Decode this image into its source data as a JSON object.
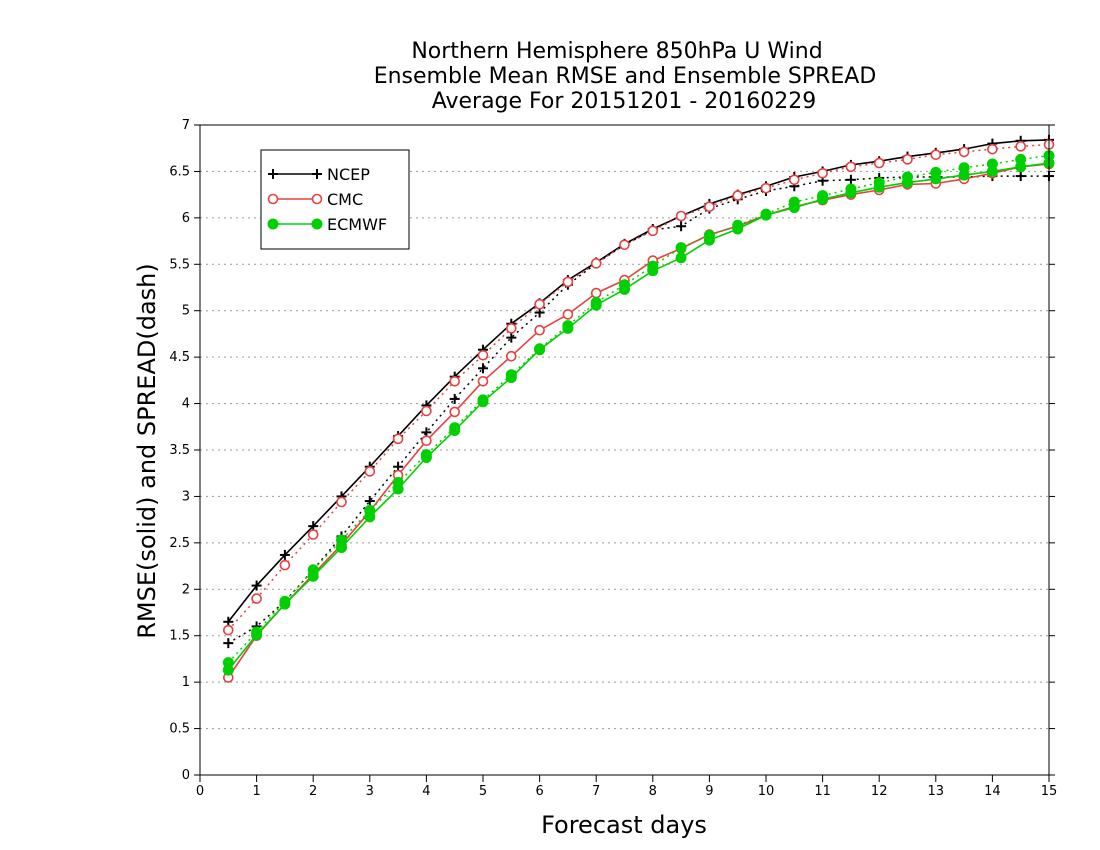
{
  "chart_data": {
    "type": "line",
    "title": [
      "Northern Hemisphere 850hPa U Wind",
      "Ensemble Mean RMSE and Ensemble SPREAD",
      "Average For 20151201 - 20160229"
    ],
    "xlabel": "Forecast days",
    "ylabel": "RMSE(solid) and SPREAD(dash)",
    "xlim": [
      0,
      15
    ],
    "ylim": [
      0,
      7
    ],
    "x_ticks": [
      "0",
      "1",
      "2",
      "3",
      "4",
      "5",
      "6",
      "7",
      "8",
      "9",
      "10",
      "11",
      "12",
      "13",
      "14",
      "15"
    ],
    "y_ticks": [
      "0",
      "0.5",
      "1",
      "1.5",
      "2",
      "2.5",
      "3",
      "3.5",
      "4",
      "4.5",
      "5",
      "5.5",
      "6",
      "6.5",
      "7"
    ],
    "grid": true,
    "legend_position": "top-left",
    "x": [
      0.5,
      1,
      1.5,
      2,
      2.5,
      3,
      3.5,
      4,
      4.5,
      5,
      5.5,
      6,
      6.5,
      7,
      7.5,
      8,
      8.5,
      9,
      9.5,
      10,
      10.5,
      11,
      11.5,
      12,
      12.5,
      13,
      13.5,
      14,
      14.5,
      15
    ],
    "series": [
      {
        "name": "NCEP",
        "color": "#000000",
        "marker": "plus",
        "rmse": [
          1.65,
          2.04,
          2.37,
          2.68,
          3.0,
          3.32,
          3.65,
          3.98,
          4.29,
          4.58,
          4.86,
          5.08,
          5.33,
          5.52,
          5.72,
          5.88,
          6.02,
          6.15,
          6.25,
          6.34,
          6.44,
          6.5,
          6.57,
          6.61,
          6.66,
          6.7,
          6.74,
          6.8,
          6.83,
          6.84
        ],
        "spread": [
          1.42,
          1.6,
          1.87,
          2.21,
          2.57,
          2.95,
          3.32,
          3.69,
          4.05,
          4.38,
          4.71,
          4.98,
          5.28,
          5.51,
          5.71,
          5.87,
          5.91,
          6.1,
          6.2,
          6.29,
          6.34,
          6.4,
          6.41,
          6.43,
          6.44,
          6.44,
          6.44,
          6.45,
          6.45,
          6.45
        ]
      },
      {
        "name": "CMC",
        "color": "#e84040",
        "marker": "open-circle",
        "rmse": [
          1.05,
          1.5,
          1.84,
          2.16,
          2.48,
          2.84,
          3.23,
          3.6,
          3.91,
          4.24,
          4.51,
          4.79,
          4.96,
          5.19,
          5.33,
          5.54,
          5.67,
          5.82,
          5.91,
          6.03,
          6.12,
          6.19,
          6.25,
          6.3,
          6.36,
          6.37,
          6.42,
          6.48,
          6.55,
          6.58
        ],
        "spread": [
          1.56,
          1.9,
          2.26,
          2.59,
          2.94,
          3.27,
          3.62,
          3.92,
          4.24,
          4.52,
          4.81,
          5.07,
          5.31,
          5.51,
          5.71,
          5.86,
          6.02,
          6.12,
          6.24,
          6.32,
          6.41,
          6.48,
          6.55,
          6.59,
          6.63,
          6.68,
          6.71,
          6.74,
          6.77,
          6.79
        ]
      },
      {
        "name": "ECMWF",
        "color": "#00d000",
        "marker": "filled-circle",
        "rmse": [
          1.13,
          1.51,
          1.84,
          2.14,
          2.45,
          2.78,
          3.08,
          3.42,
          3.71,
          4.02,
          4.28,
          4.58,
          4.81,
          5.06,
          5.23,
          5.43,
          5.57,
          5.76,
          5.88,
          6.03,
          6.11,
          6.2,
          6.27,
          6.33,
          6.38,
          6.42,
          6.46,
          6.5,
          6.55,
          6.59
        ],
        "spread": [
          1.21,
          1.54,
          1.87,
          2.21,
          2.53,
          2.85,
          3.15,
          3.45,
          3.74,
          4.04,
          4.31,
          4.59,
          4.84,
          5.09,
          5.28,
          5.48,
          5.68,
          5.81,
          5.92,
          6.04,
          6.17,
          6.24,
          6.31,
          6.38,
          6.44,
          6.49,
          6.54,
          6.58,
          6.63,
          6.67
        ]
      }
    ]
  }
}
